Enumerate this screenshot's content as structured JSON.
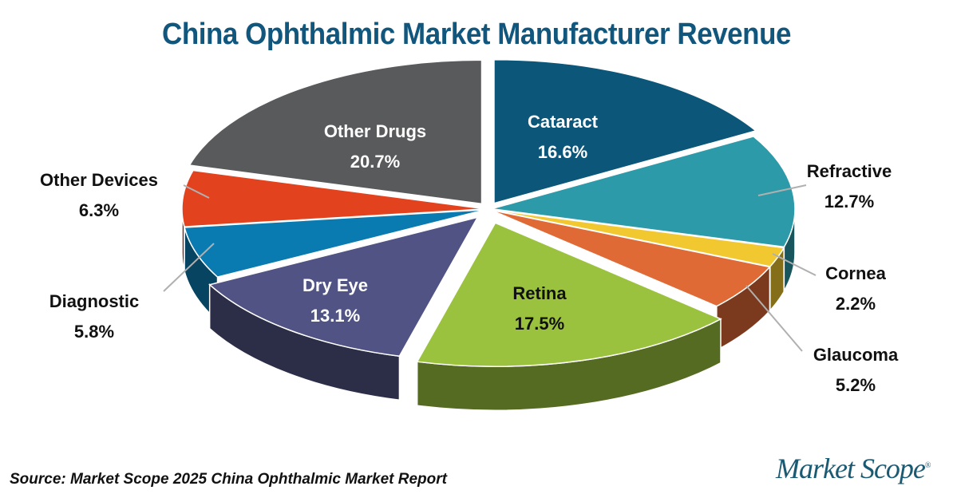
{
  "title": "China Ophthalmic Market Manufacturer Revenue",
  "source": "Source: Market Scope 2025 China Ophthalmic Market Report",
  "logo": {
    "text": "Market Scope",
    "mark": "®"
  },
  "chart_data": {
    "type": "pie",
    "title": "China Ophthalmic Market Manufacturer Revenue",
    "style": "3d exploded",
    "categories": [
      "Cataract",
      "Refractive",
      "Cornea",
      "Glaucoma",
      "Retina",
      "Dry Eye",
      "Diagnostic",
      "Other Devices",
      "Other Drugs"
    ],
    "values": [
      16.6,
      12.7,
      2.2,
      5.2,
      17.5,
      13.1,
      5.8,
      6.3,
      20.7
    ],
    "unit": "%",
    "colors": [
      "#0b5679",
      "#2c9aa8",
      "#f2c830",
      "#e06a35",
      "#9bc23e",
      "#505383",
      "#0a7bb0",
      "#e2421e",
      "#595a5c"
    ],
    "labels": [
      {
        "name": "Cataract",
        "value": "16.6%"
      },
      {
        "name": "Refractive",
        "value": "12.7%"
      },
      {
        "name": "Cornea",
        "value": "2.2%"
      },
      {
        "name": "Glaucoma",
        "value": "5.2%"
      },
      {
        "name": "Retina",
        "value": "17.5%"
      },
      {
        "name": "Dry Eye",
        "value": "13.1%"
      },
      {
        "name": "Diagnostic",
        "value": "5.8%"
      },
      {
        "name": "Other Devices",
        "value": "6.3%"
      },
      {
        "name": "Other Drugs",
        "value": "20.7%"
      }
    ]
  }
}
